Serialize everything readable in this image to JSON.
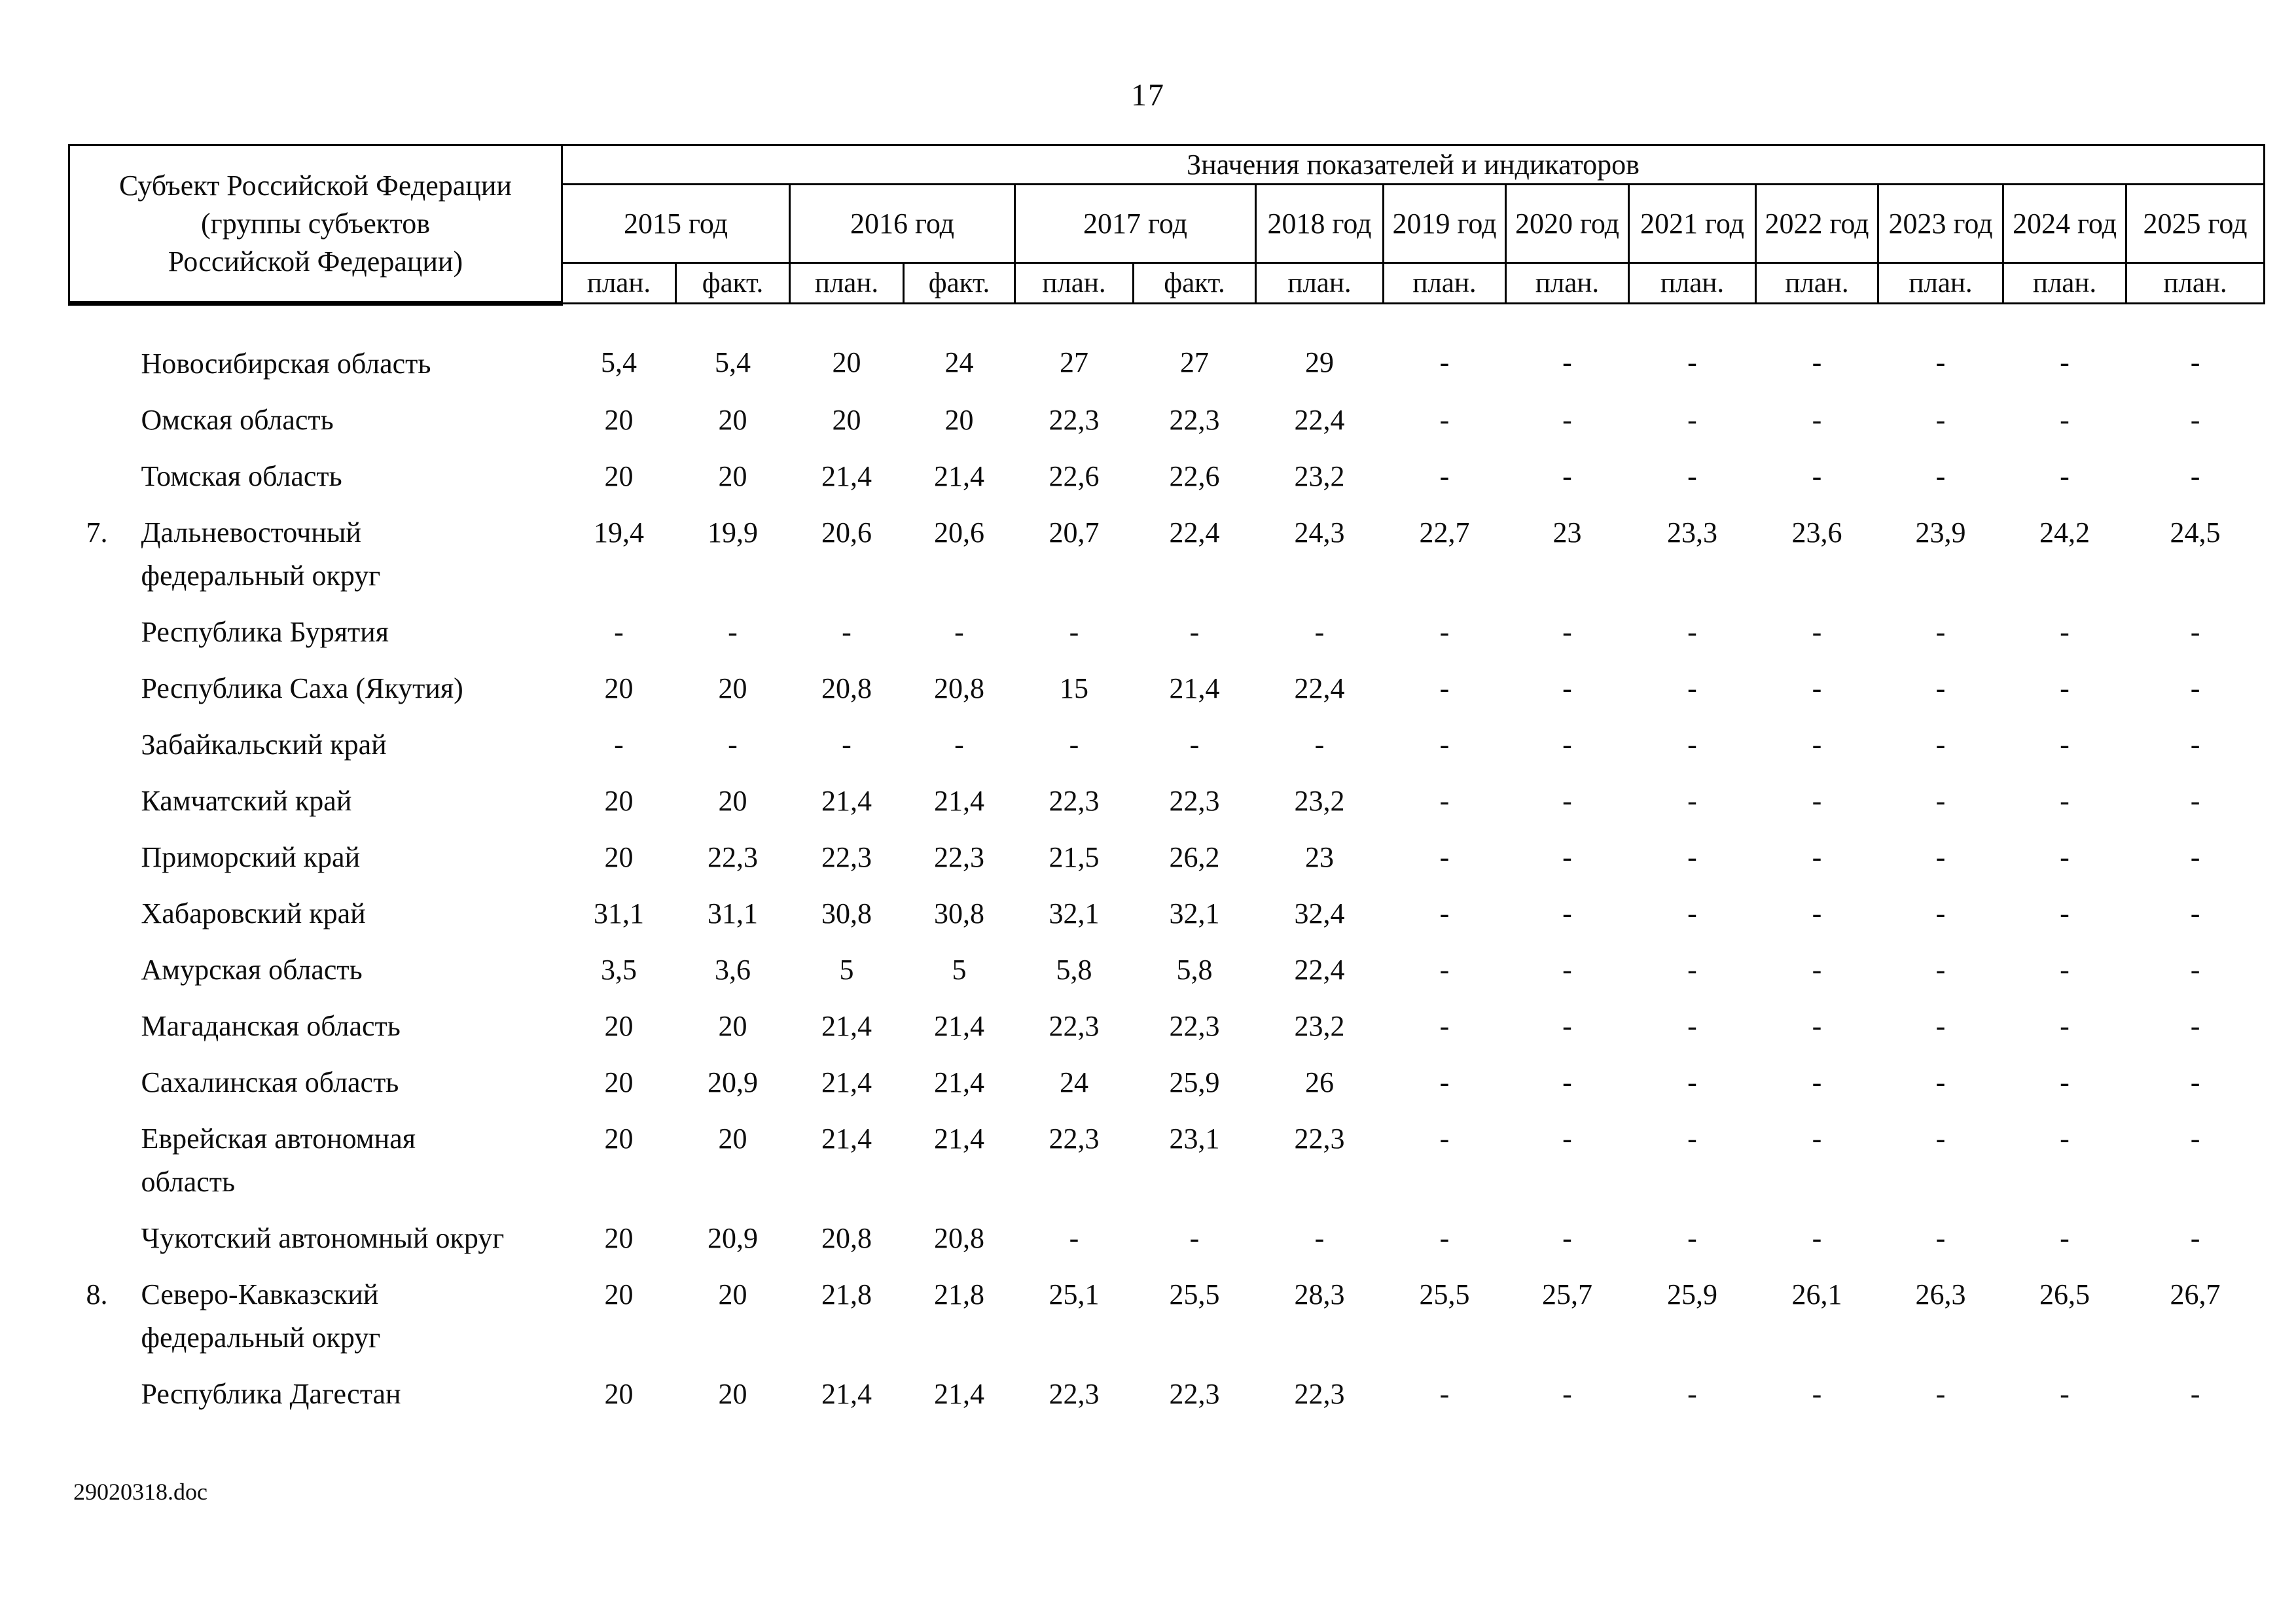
{
  "page": {
    "number": "17",
    "footer_filename": "29020318.doc"
  },
  "table": {
    "subject_header_lines": [
      "Субъект Российской Федерации",
      "(группы субъектов",
      "Российской Федерации)"
    ],
    "values_header": "Значения показателей и индикаторов",
    "year_groups": [
      {
        "label": "2015 год",
        "sub": [
          "план.",
          "факт."
        ]
      },
      {
        "label": "2016 год",
        "sub": [
          "план.",
          "факт."
        ]
      },
      {
        "label": "2017 год",
        "sub": [
          "план.",
          "факт."
        ]
      },
      {
        "label": "2018 год",
        "sub": [
          "план."
        ]
      },
      {
        "label": "2019 год",
        "sub": [
          "план."
        ]
      },
      {
        "label": "2020 год",
        "sub": [
          "план."
        ]
      },
      {
        "label": "2021 год",
        "sub": [
          "план."
        ]
      },
      {
        "label": "2022 год",
        "sub": [
          "план."
        ]
      },
      {
        "label": "2023 год",
        "sub": [
          "план."
        ]
      },
      {
        "label": "2024 год",
        "sub": [
          "план."
        ]
      },
      {
        "label": "2025 год",
        "sub": [
          "план."
        ]
      }
    ],
    "rows": [
      {
        "num": "",
        "name": "Новосибирская область",
        "values": [
          "5,4",
          "5,4",
          "20",
          "24",
          "27",
          "27",
          "29",
          "-",
          "-",
          "-",
          "-",
          "-",
          "-",
          "-"
        ]
      },
      {
        "num": "",
        "name": "Омская область",
        "values": [
          "20",
          "20",
          "20",
          "20",
          "22,3",
          "22,3",
          "22,4",
          "-",
          "-",
          "-",
          "-",
          "-",
          "-",
          "-"
        ]
      },
      {
        "num": "",
        "name": "Томская область",
        "values": [
          "20",
          "20",
          "21,4",
          "21,4",
          "22,6",
          "22,6",
          "23,2",
          "-",
          "-",
          "-",
          "-",
          "-",
          "-",
          "-"
        ]
      },
      {
        "num": "7.",
        "name": "Дальневосточный федеральный округ",
        "values": [
          "19,4",
          "19,9",
          "20,6",
          "20,6",
          "20,7",
          "22,4",
          "24,3",
          "22,7",
          "23",
          "23,3",
          "23,6",
          "23,9",
          "24,2",
          "24,5"
        ]
      },
      {
        "num": "",
        "name": "Республика Бурятия",
        "values": [
          "-",
          "-",
          "-",
          "-",
          "-",
          "-",
          "-",
          "-",
          "-",
          "-",
          "-",
          "-",
          "-",
          "-"
        ]
      },
      {
        "num": "",
        "name": "Республика Саха (Якутия)",
        "values": [
          "20",
          "20",
          "20,8",
          "20,8",
          "15",
          "21,4",
          "22,4",
          "-",
          "-",
          "-",
          "-",
          "-",
          "-",
          "-"
        ]
      },
      {
        "num": "",
        "name": "Забайкальский край",
        "values": [
          "-",
          "-",
          "-",
          "-",
          "-",
          "-",
          "-",
          "-",
          "-",
          "-",
          "-",
          "-",
          "-",
          "-"
        ]
      },
      {
        "num": "",
        "name": "Камчатский край",
        "values": [
          "20",
          "20",
          "21,4",
          "21,4",
          "22,3",
          "22,3",
          "23,2",
          "-",
          "-",
          "-",
          "-",
          "-",
          "-",
          "-"
        ]
      },
      {
        "num": "",
        "name": "Приморский край",
        "values": [
          "20",
          "22,3",
          "22,3",
          "22,3",
          "21,5",
          "26,2",
          "23",
          "-",
          "-",
          "-",
          "-",
          "-",
          "-",
          "-"
        ]
      },
      {
        "num": "",
        "name": "Хабаровский край",
        "values": [
          "31,1",
          "31,1",
          "30,8",
          "30,8",
          "32,1",
          "32,1",
          "32,4",
          "-",
          "-",
          "-",
          "-",
          "-",
          "-",
          "-"
        ]
      },
      {
        "num": "",
        "name": "Амурская область",
        "values": [
          "3,5",
          "3,6",
          "5",
          "5",
          "5,8",
          "5,8",
          "22,4",
          "-",
          "-",
          "-",
          "-",
          "-",
          "-",
          "-"
        ]
      },
      {
        "num": "",
        "name": "Магаданская область",
        "values": [
          "20",
          "20",
          "21,4",
          "21,4",
          "22,3",
          "22,3",
          "23,2",
          "-",
          "-",
          "-",
          "-",
          "-",
          "-",
          "-"
        ]
      },
      {
        "num": "",
        "name": "Сахалинская область",
        "values": [
          "20",
          "20,9",
          "21,4",
          "21,4",
          "24",
          "25,9",
          "26",
          "-",
          "-",
          "-",
          "-",
          "-",
          "-",
          "-"
        ]
      },
      {
        "num": "",
        "name": "Еврейская автономная область",
        "values": [
          "20",
          "20",
          "21,4",
          "21,4",
          "22,3",
          "23,1",
          "22,3",
          "-",
          "-",
          "-",
          "-",
          "-",
          "-",
          "-"
        ]
      },
      {
        "num": "",
        "name": "Чукотский автономный округ",
        "values": [
          "20",
          "20,9",
          "20,8",
          "20,8",
          "-",
          "-",
          "-",
          "-",
          "-",
          "-",
          "-",
          "-",
          "-",
          "-"
        ]
      },
      {
        "num": "8.",
        "name": "Северо-Кавказский федеральный округ",
        "values": [
          "20",
          "20",
          "21,8",
          "21,8",
          "25,1",
          "25,5",
          "28,3",
          "25,5",
          "25,7",
          "25,9",
          "26,1",
          "26,3",
          "26,5",
          "26,7"
        ]
      },
      {
        "num": "",
        "name": "Республика Дагестан",
        "values": [
          "20",
          "20",
          "21,4",
          "21,4",
          "22,3",
          "22,3",
          "22,3",
          "-",
          "-",
          "-",
          "-",
          "-",
          "-",
          "-"
        ]
      }
    ]
  }
}
